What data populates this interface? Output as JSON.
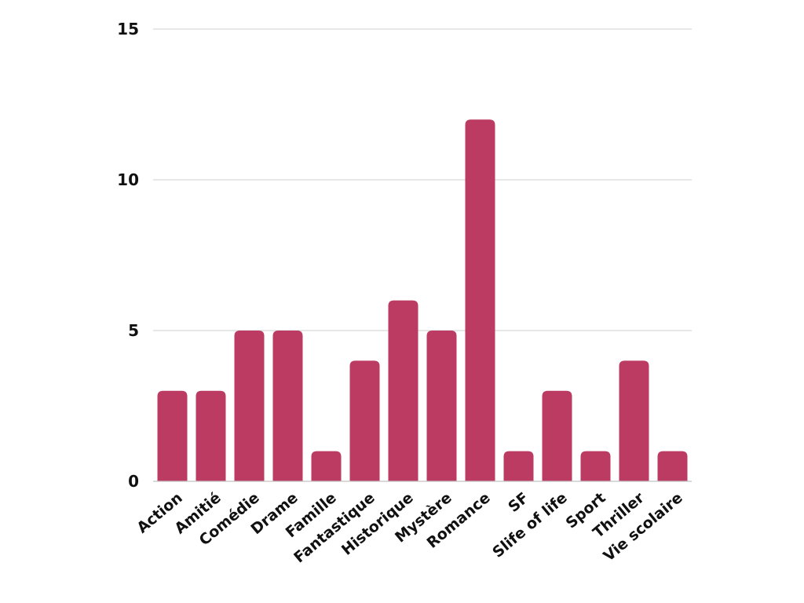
{
  "chart_data": {
    "type": "bar",
    "title": "",
    "xlabel": "",
    "ylabel": "",
    "categories": [
      "Action",
      "Amitié",
      "Comédie",
      "Drame",
      "Famille",
      "Fantastique",
      "Historique",
      "Mystère",
      "Romance",
      "SF",
      "Slife of life",
      "Sport",
      "Thriller",
      "Vie scolaire"
    ],
    "values": [
      3,
      3,
      5,
      5,
      1,
      4,
      6,
      5,
      12,
      1,
      3,
      1,
      4,
      1
    ],
    "ylim": [
      0,
      15
    ],
    "yticks": [
      "0",
      "5",
      "10",
      "15"
    ],
    "grid": true,
    "legend": "none",
    "bar_color": "#bc3b62"
  }
}
